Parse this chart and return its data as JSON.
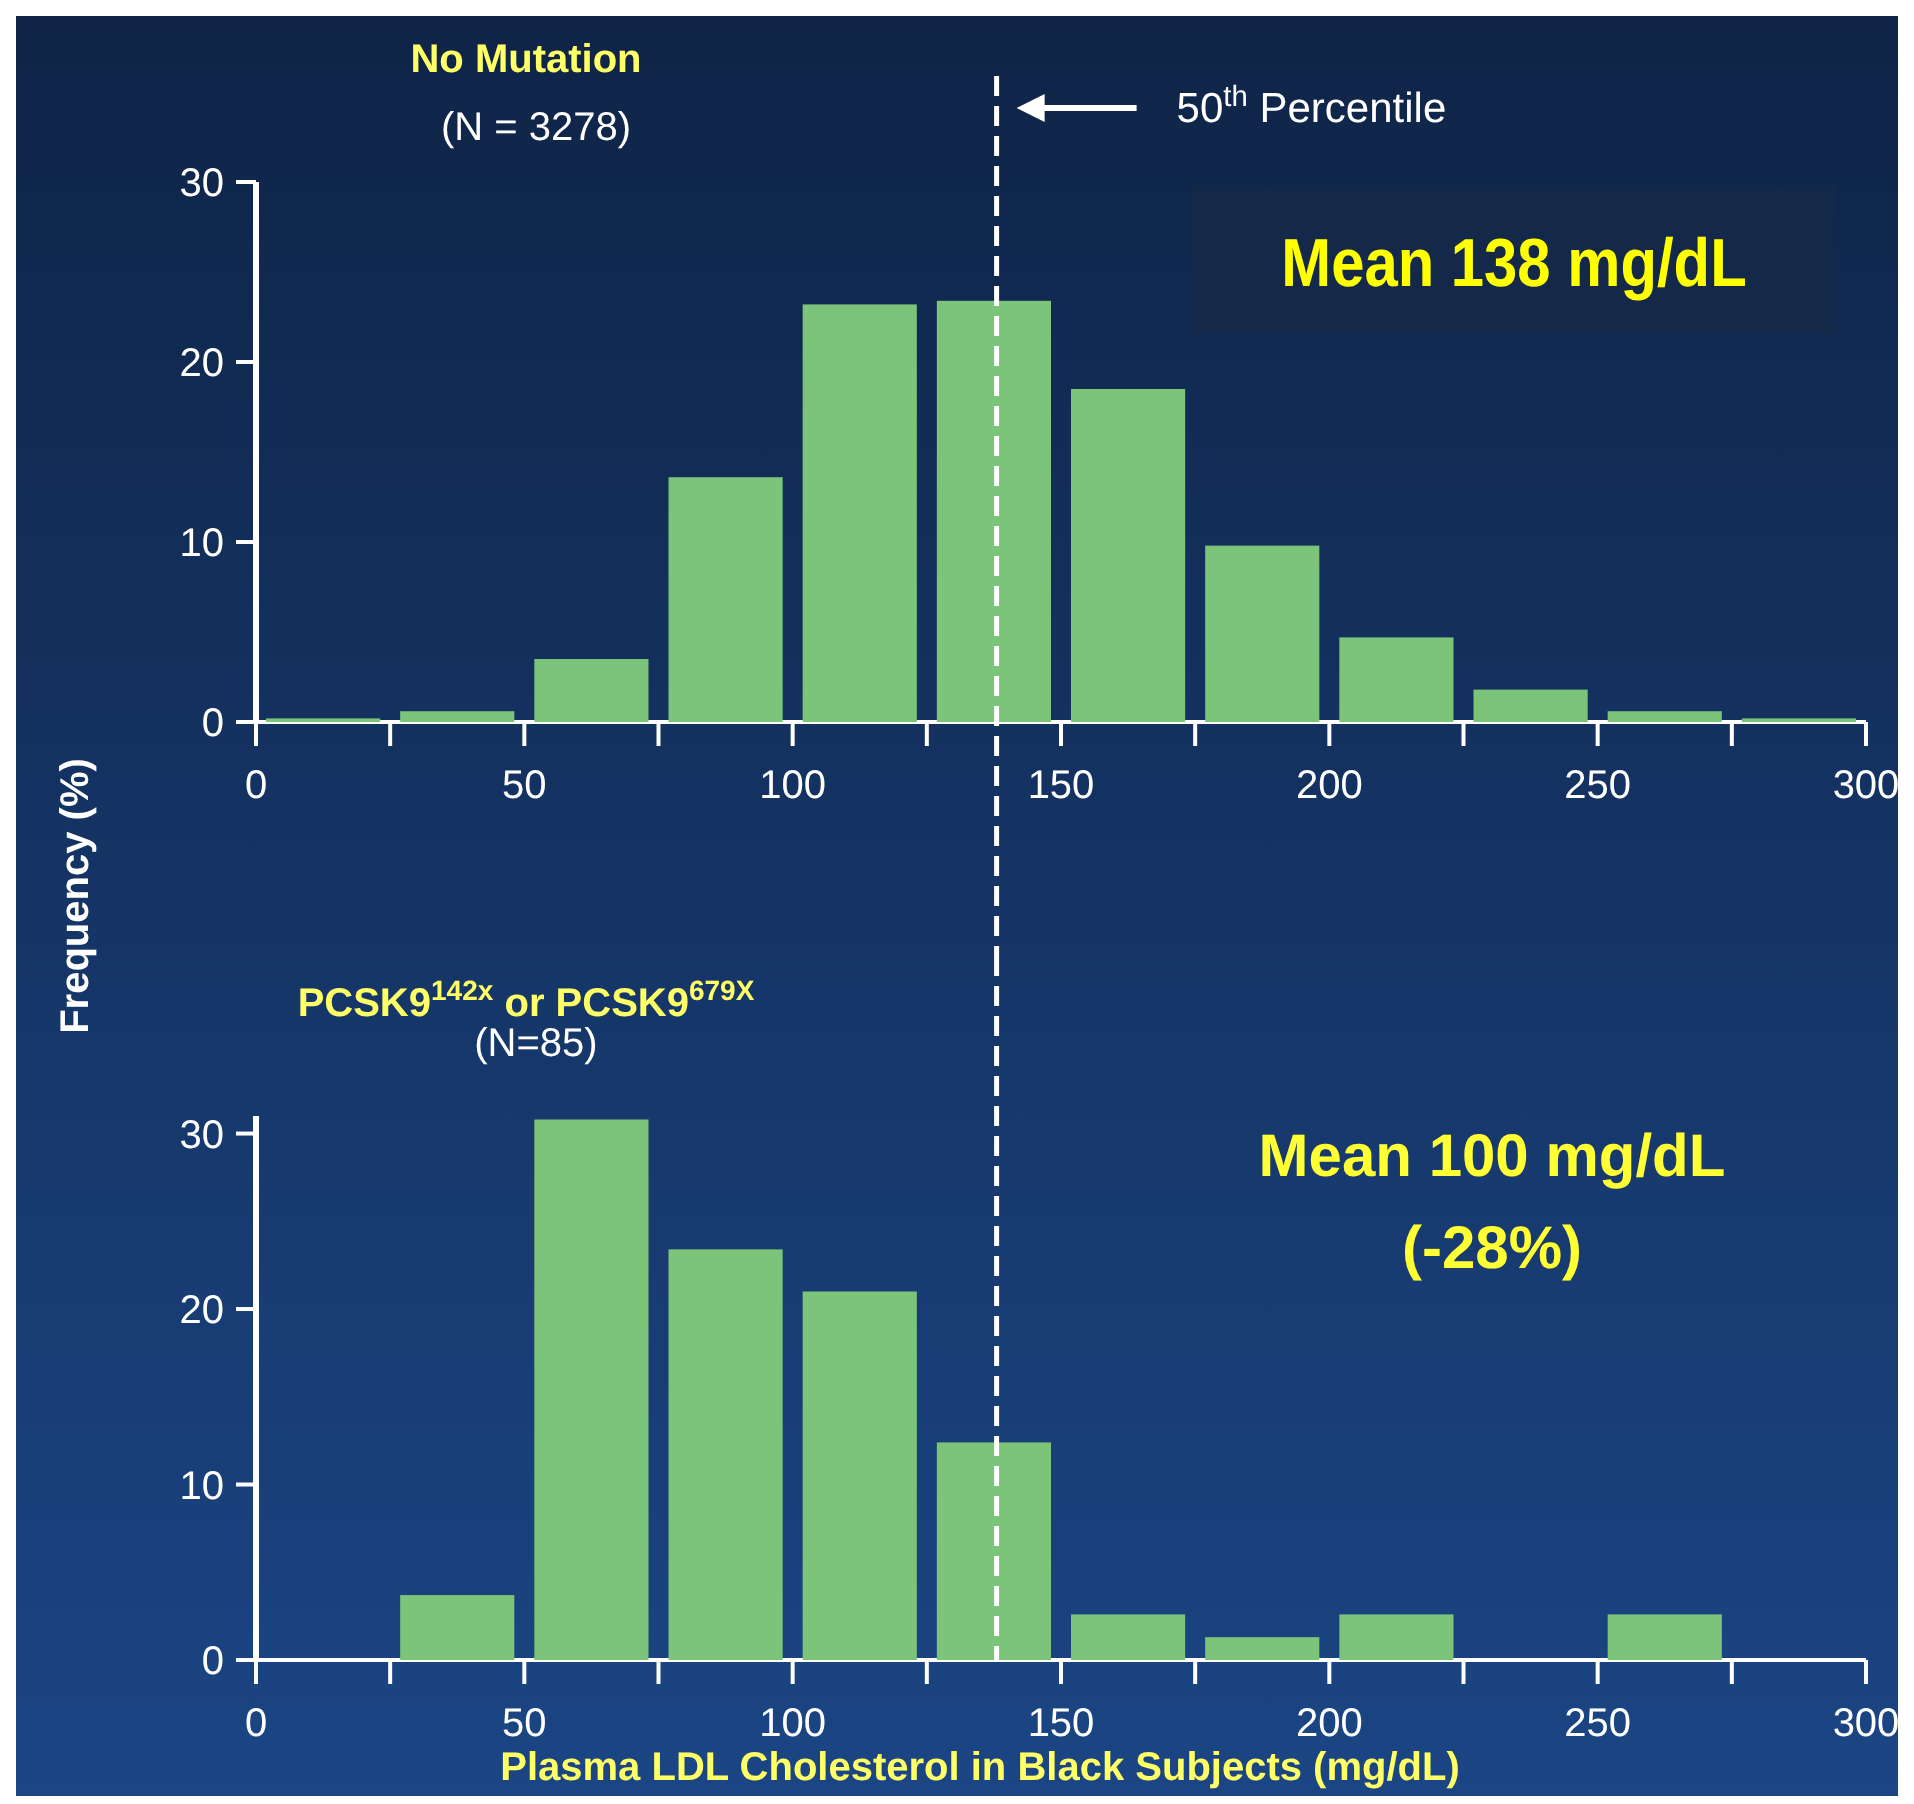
{
  "chart_data": [
    {
      "type": "histogram",
      "title": "No Mutation",
      "subtitle": "(N = 3278)",
      "ylabel": "Frequency (%)",
      "bins": [
        0,
        25,
        50,
        75,
        100,
        125,
        150,
        175,
        200,
        225,
        250,
        275,
        300
      ],
      "values": [
        0.2,
        0.6,
        3.5,
        13.6,
        23.2,
        23.4,
        18.5,
        9.8,
        4.7,
        1.8,
        0.6,
        0.2
      ],
      "color": "#7cc47a",
      "xlim": [
        0,
        300
      ],
      "xticks": [
        0,
        50,
        100,
        150,
        200,
        250,
        300
      ],
      "ylim": [
        0,
        30
      ],
      "yticks": [
        0,
        10,
        20,
        30
      ],
      "ref_lines": [
        {
          "axis": "x",
          "value": 138,
          "label": "50$^{th}$ Percentile",
          "line_style": "dashed",
          "color": "#ffffff"
        }
      ],
      "annotations": [
        "Mean 138 mg/dL"
      ]
    },
    {
      "type": "histogram",
      "title": "PCSK9$^{142x}$ or PCSK9$^{679X}$",
      "subtitle": "(N=85)",
      "xlabel": "Plasma LDL Cholesterol in Black Subjects (mg/dL)",
      "bins": [
        0,
        25,
        50,
        75,
        100,
        125,
        150,
        175,
        200,
        225,
        250,
        275,
        300
      ],
      "values": [
        0,
        3.7,
        30.8,
        23.4,
        21.0,
        12.4,
        2.6,
        1.3,
        2.6,
        0,
        2.6,
        0
      ],
      "color": "#7cc47a",
      "xlim": [
        0,
        300
      ],
      "xticks": [
        0,
        50,
        100,
        150,
        200,
        250,
        300
      ],
      "ylim": [
        0,
        31
      ],
      "yticks": [
        0,
        10,
        20,
        30
      ],
      "ref_lines": [
        {
          "axis": "x",
          "value": 138,
          "line_style": "dashed",
          "color": "#ffffff"
        }
      ],
      "annotations": [
        "Mean 100 mg/dL",
        "(-28%)"
      ]
    }
  ]
}
